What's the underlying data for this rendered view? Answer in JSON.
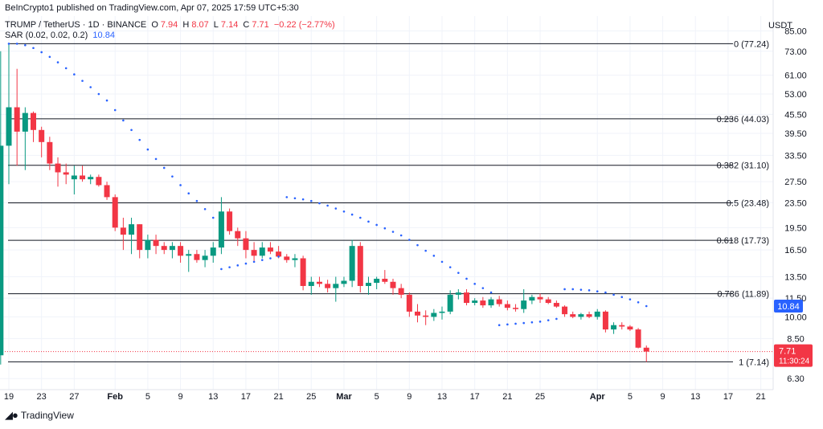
{
  "header": {
    "publisher": "BeInCrypto1 published on TradingView.com, Apr 07, 2025 17:59 UTC+5:30",
    "symbol": "TRUMP / TetherUS · 1D · BINANCE",
    "ohlc": {
      "o_label": "O",
      "o": "7.94",
      "h_label": "H",
      "h": "8.07",
      "l_label": "L",
      "l": "7.14",
      "c_label": "C",
      "c": "7.71",
      "change": "−0.22 (−2.77%)"
    },
    "sar_label": "SAR (0.02, 0.02, 0.2)",
    "sar_value": "10.84"
  },
  "currency": "USDT",
  "footer": {
    "brand": "TradingView",
    "logo_icon": "tradingview-logo-icon"
  },
  "colors": {
    "up": "#089981",
    "down": "#f23645",
    "sar": "#2962ff",
    "grid": "#f0f3fa",
    "level_line": "#131722",
    "price_line": "#f23645"
  },
  "chart_data": {
    "type": "candlestick",
    "symbol": "TRUMP/USDT",
    "scale": "log",
    "ylim": [
      5.8,
      95
    ],
    "y_ticks": [
      "85.00",
      "73.00",
      "61.00",
      "53.00",
      "45.50",
      "39.50",
      "33.50",
      "27.50",
      "23.50",
      "19.50",
      "16.50",
      "13.50",
      "11.50",
      "10.00",
      "8.50",
      "6.30"
    ],
    "x_ticks": [
      "19",
      "23",
      "27",
      "Feb",
      "5",
      "9",
      "13",
      "17",
      "21",
      "25",
      "Mar",
      "5",
      "9",
      "13",
      "17",
      "21",
      "25",
      "Apr",
      "5",
      "9",
      "13",
      "17",
      "21"
    ],
    "x_start_date": "2025-01-19",
    "fib_levels": [
      {
        "label": "0 (77.24)",
        "value": 77.24
      },
      {
        "label": "0.236 (44.03)",
        "value": 44.03
      },
      {
        "label": "0.382 (31.10)",
        "value": 31.1
      },
      {
        "label": "0.5 (23.48)",
        "value": 23.48
      },
      {
        "label": "0.618 (17.73)",
        "value": 17.73
      },
      {
        "label": "0.786 (11.89)",
        "value": 11.89
      },
      {
        "label": "1 (7.14)",
        "value": 7.14
      }
    ],
    "last_price": {
      "value": 7.71,
      "label": "7.71",
      "countdown": "11:30:24"
    },
    "sar_current": {
      "value": 10.84,
      "label": "10.84"
    },
    "candles": [
      {
        "d": "2025-01-18",
        "o": 7.5,
        "h": 73.0,
        "l": 7.0,
        "c": 36.0
      },
      {
        "d": "2025-01-19",
        "o": 36.0,
        "h": 77.24,
        "l": 27.0,
        "c": 48.0
      },
      {
        "d": "2025-01-20",
        "o": 48.0,
        "h": 64.0,
        "l": 31.0,
        "c": 40.0
      },
      {
        "d": "2025-01-21",
        "o": 40.0,
        "h": 48.0,
        "l": 30.0,
        "c": 46.0
      },
      {
        "d": "2025-01-22",
        "o": 46.0,
        "h": 46.5,
        "l": 37.0,
        "c": 40.5
      },
      {
        "d": "2025-01-23",
        "o": 40.5,
        "h": 41.5,
        "l": 33.0,
        "c": 37.0
      },
      {
        "d": "2025-01-24",
        "o": 37.0,
        "h": 38.5,
        "l": 30.0,
        "c": 31.5
      },
      {
        "d": "2025-01-25",
        "o": 31.5,
        "h": 33.0,
        "l": 26.5,
        "c": 29.5
      },
      {
        "d": "2025-01-26",
        "o": 29.5,
        "h": 31.5,
        "l": 27.0,
        "c": 29.0
      },
      {
        "d": "2025-01-27",
        "o": 28.0,
        "h": 31.0,
        "l": 25.0,
        "c": 28.8
      },
      {
        "d": "2025-01-28",
        "o": 28.8,
        "h": 31.0,
        "l": 27.5,
        "c": 28.0
      },
      {
        "d": "2025-01-29",
        "o": 28.0,
        "h": 29.0,
        "l": 27.0,
        "c": 28.5
      },
      {
        "d": "2025-01-30",
        "o": 28.5,
        "h": 29.0,
        "l": 26.5,
        "c": 26.8
      },
      {
        "d": "2025-01-31",
        "o": 26.8,
        "h": 27.5,
        "l": 24.0,
        "c": 24.5
      },
      {
        "d": "2025-02-01",
        "o": 24.5,
        "h": 25.0,
        "l": 19.0,
        "c": 19.5
      },
      {
        "d": "2025-02-02",
        "o": 19.5,
        "h": 21.0,
        "l": 16.5,
        "c": 18.5
      },
      {
        "d": "2025-02-03",
        "o": 18.5,
        "h": 21.0,
        "l": 16.0,
        "c": 20.0
      },
      {
        "d": "2025-02-04",
        "o": 20.0,
        "h": 20.0,
        "l": 15.5,
        "c": 16.5
      },
      {
        "d": "2025-02-05",
        "o": 16.5,
        "h": 18.5,
        "l": 15.5,
        "c": 17.8
      },
      {
        "d": "2025-02-06",
        "o": 17.8,
        "h": 18.5,
        "l": 16.0,
        "c": 17.0
      },
      {
        "d": "2025-02-07",
        "o": 17.0,
        "h": 17.5,
        "l": 16.0,
        "c": 16.5
      },
      {
        "d": "2025-02-08",
        "o": 16.5,
        "h": 17.5,
        "l": 15.5,
        "c": 17.0
      },
      {
        "d": "2025-02-09",
        "o": 17.0,
        "h": 17.5,
        "l": 15.0,
        "c": 15.8
      },
      {
        "d": "2025-02-10",
        "o": 15.8,
        "h": 16.5,
        "l": 14.0,
        "c": 16.0
      },
      {
        "d": "2025-02-11",
        "o": 16.0,
        "h": 16.5,
        "l": 15.0,
        "c": 15.3
      },
      {
        "d": "2025-02-12",
        "o": 15.3,
        "h": 16.5,
        "l": 14.5,
        "c": 15.8
      },
      {
        "d": "2025-02-13",
        "o": 15.8,
        "h": 17.5,
        "l": 15.0,
        "c": 16.8
      },
      {
        "d": "2025-02-14",
        "o": 16.8,
        "h": 24.5,
        "l": 16.0,
        "c": 22.0
      },
      {
        "d": "2025-02-15",
        "o": 22.0,
        "h": 22.5,
        "l": 18.5,
        "c": 19.0
      },
      {
        "d": "2025-02-16",
        "o": 19.0,
        "h": 19.5,
        "l": 17.0,
        "c": 18.0
      },
      {
        "d": "2025-02-17",
        "o": 18.0,
        "h": 19.0,
        "l": 15.5,
        "c": 16.5
      },
      {
        "d": "2025-02-18",
        "o": 16.5,
        "h": 17.5,
        "l": 15.0,
        "c": 15.8
      },
      {
        "d": "2025-02-19",
        "o": 15.8,
        "h": 17.5,
        "l": 15.5,
        "c": 16.8
      },
      {
        "d": "2025-02-20",
        "o": 16.8,
        "h": 17.5,
        "l": 16.0,
        "c": 16.3
      },
      {
        "d": "2025-02-21",
        "o": 16.3,
        "h": 17.0,
        "l": 15.5,
        "c": 15.7
      },
      {
        "d": "2025-02-22",
        "o": 15.7,
        "h": 16.0,
        "l": 15.0,
        "c": 15.3
      },
      {
        "d": "2025-02-23",
        "o": 15.3,
        "h": 16.0,
        "l": 14.5,
        "c": 15.5
      },
      {
        "d": "2025-02-24",
        "o": 15.5,
        "h": 15.8,
        "l": 12.2,
        "c": 12.6
      },
      {
        "d": "2025-02-25",
        "o": 12.6,
        "h": 13.5,
        "l": 11.8,
        "c": 13.0
      },
      {
        "d": "2025-02-26",
        "o": 13.0,
        "h": 13.5,
        "l": 12.5,
        "c": 12.8
      },
      {
        "d": "2025-02-27",
        "o": 12.8,
        "h": 13.2,
        "l": 12.0,
        "c": 12.4
      },
      {
        "d": "2025-02-28",
        "o": 12.4,
        "h": 13.5,
        "l": 11.2,
        "c": 12.8
      },
      {
        "d": "2025-03-01",
        "o": 12.8,
        "h": 13.5,
        "l": 12.5,
        "c": 13.1
      },
      {
        "d": "2025-03-02",
        "o": 13.1,
        "h": 17.8,
        "l": 12.5,
        "c": 17.0
      },
      {
        "d": "2025-03-03",
        "o": 17.0,
        "h": 17.5,
        "l": 12.0,
        "c": 12.6
      },
      {
        "d": "2025-03-04",
        "o": 12.6,
        "h": 13.5,
        "l": 11.8,
        "c": 12.9
      },
      {
        "d": "2025-03-05",
        "o": 12.9,
        "h": 13.5,
        "l": 12.3,
        "c": 13.3
      },
      {
        "d": "2025-03-06",
        "o": 13.3,
        "h": 14.2,
        "l": 12.8,
        "c": 13.0
      },
      {
        "d": "2025-03-07",
        "o": 13.0,
        "h": 13.3,
        "l": 11.8,
        "c": 12.4
      },
      {
        "d": "2025-03-08",
        "o": 12.4,
        "h": 12.8,
        "l": 11.5,
        "c": 11.8
      },
      {
        "d": "2025-03-09",
        "o": 11.8,
        "h": 12.0,
        "l": 10.0,
        "c": 10.4
      },
      {
        "d": "2025-03-10",
        "o": 10.4,
        "h": 11.0,
        "l": 9.6,
        "c": 10.1
      },
      {
        "d": "2025-03-11",
        "o": 10.1,
        "h": 10.5,
        "l": 9.4,
        "c": 10.0
      },
      {
        "d": "2025-03-12",
        "o": 10.0,
        "h": 10.6,
        "l": 9.7,
        "c": 10.3
      },
      {
        "d": "2025-03-13",
        "o": 10.3,
        "h": 10.8,
        "l": 9.8,
        "c": 10.4
      },
      {
        "d": "2025-03-14",
        "o": 10.4,
        "h": 12.2,
        "l": 10.2,
        "c": 11.8
      },
      {
        "d": "2025-03-15",
        "o": 11.8,
        "h": 12.3,
        "l": 11.4,
        "c": 12.0
      },
      {
        "d": "2025-03-16",
        "o": 12.0,
        "h": 12.3,
        "l": 10.9,
        "c": 11.1
      },
      {
        "d": "2025-03-17",
        "o": 11.1,
        "h": 11.5,
        "l": 10.9,
        "c": 11.3
      },
      {
        "d": "2025-03-18",
        "o": 11.3,
        "h": 11.6,
        "l": 10.7,
        "c": 10.9
      },
      {
        "d": "2025-03-19",
        "o": 10.9,
        "h": 11.6,
        "l": 10.7,
        "c": 11.4
      },
      {
        "d": "2025-03-20",
        "o": 11.4,
        "h": 11.7,
        "l": 10.8,
        "c": 11.0
      },
      {
        "d": "2025-03-21",
        "o": 11.0,
        "h": 11.3,
        "l": 10.5,
        "c": 10.7
      },
      {
        "d": "2025-03-22",
        "o": 10.7,
        "h": 11.0,
        "l": 10.4,
        "c": 10.6
      },
      {
        "d": "2025-03-23",
        "o": 10.6,
        "h": 12.3,
        "l": 10.3,
        "c": 11.3
      },
      {
        "d": "2025-03-24",
        "o": 11.3,
        "h": 11.8,
        "l": 11.0,
        "c": 11.6
      },
      {
        "d": "2025-03-25",
        "o": 11.6,
        "h": 11.9,
        "l": 11.1,
        "c": 11.4
      },
      {
        "d": "2025-03-26",
        "o": 11.4,
        "h": 11.6,
        "l": 11.0,
        "c": 11.1
      },
      {
        "d": "2025-03-27",
        "o": 11.1,
        "h": 11.3,
        "l": 10.7,
        "c": 10.8
      },
      {
        "d": "2025-03-28",
        "o": 10.8,
        "h": 10.9,
        "l": 10.0,
        "c": 10.2
      },
      {
        "d": "2025-03-29",
        "o": 10.2,
        "h": 10.4,
        "l": 9.9,
        "c": 10.0
      },
      {
        "d": "2025-03-30",
        "o": 10.0,
        "h": 10.3,
        "l": 9.8,
        "c": 10.2
      },
      {
        "d": "2025-03-31",
        "o": 10.2,
        "h": 10.4,
        "l": 9.9,
        "c": 10.0
      },
      {
        "d": "2025-04-01",
        "o": 10.0,
        "h": 10.6,
        "l": 9.8,
        "c": 10.4
      },
      {
        "d": "2025-04-02",
        "o": 10.4,
        "h": 10.5,
        "l": 8.9,
        "c": 9.1
      },
      {
        "d": "2025-04-03",
        "o": 9.1,
        "h": 9.6,
        "l": 8.8,
        "c": 9.4
      },
      {
        "d": "2025-04-04",
        "o": 9.4,
        "h": 9.6,
        "l": 9.1,
        "c": 9.3
      },
      {
        "d": "2025-04-05",
        "o": 9.3,
        "h": 9.4,
        "l": 9.0,
        "c": 9.1
      },
      {
        "d": "2025-04-06",
        "o": 9.1,
        "h": 9.2,
        "l": 7.9,
        "c": 7.94
      },
      {
        "d": "2025-04-07",
        "o": 7.94,
        "h": 8.07,
        "l": 7.14,
        "c": 7.71
      }
    ],
    "sar": [
      {
        "d": "2025-01-19",
        "v": 77.24
      },
      {
        "d": "2025-01-20",
        "v": 77.24
      },
      {
        "d": "2025-01-21",
        "v": 76.4
      },
      {
        "d": "2025-01-22",
        "v": 74.8
      },
      {
        "d": "2025-01-23",
        "v": 72.5
      },
      {
        "d": "2025-01-24",
        "v": 70.0
      },
      {
        "d": "2025-01-25",
        "v": 67.2
      },
      {
        "d": "2025-01-26",
        "v": 64.3
      },
      {
        "d": "2025-01-27",
        "v": 61.4
      },
      {
        "d": "2025-01-28",
        "v": 58.5
      },
      {
        "d": "2025-01-29",
        "v": 55.8
      },
      {
        "d": "2025-01-30",
        "v": 53.0
      },
      {
        "d": "2025-01-31",
        "v": 50.5
      },
      {
        "d": "2025-02-01",
        "v": 47.0
      },
      {
        "d": "2025-02-02",
        "v": 43.5
      },
      {
        "d": "2025-02-03",
        "v": 40.5
      },
      {
        "d": "2025-02-04",
        "v": 37.6
      },
      {
        "d": "2025-02-05",
        "v": 35.0
      },
      {
        "d": "2025-02-06",
        "v": 32.6
      },
      {
        "d": "2025-02-07",
        "v": 30.5
      },
      {
        "d": "2025-02-08",
        "v": 28.6
      },
      {
        "d": "2025-02-09",
        "v": 26.8
      },
      {
        "d": "2025-02-10",
        "v": 25.2
      },
      {
        "d": "2025-02-11",
        "v": 23.8
      },
      {
        "d": "2025-02-12",
        "v": 22.4
      },
      {
        "d": "2025-02-13",
        "v": 21.0
      },
      {
        "d": "2025-02-14",
        "v": 14.3
      },
      {
        "d": "2025-02-15",
        "v": 14.5
      },
      {
        "d": "2025-02-16",
        "v": 14.7
      },
      {
        "d": "2025-02-17",
        "v": 14.9
      },
      {
        "d": "2025-02-18",
        "v": 15.1
      },
      {
        "d": "2025-02-19",
        "v": 15.3
      },
      {
        "d": "2025-02-20",
        "v": 15.5
      },
      {
        "d": "2025-02-21",
        "v": 15.7
      },
      {
        "d": "2025-02-22",
        "v": 24.5
      },
      {
        "d": "2025-02-23",
        "v": 24.3
      },
      {
        "d": "2025-02-24",
        "v": 24.1
      },
      {
        "d": "2025-02-25",
        "v": 23.8
      },
      {
        "d": "2025-02-26",
        "v": 23.4
      },
      {
        "d": "2025-02-27",
        "v": 23.0
      },
      {
        "d": "2025-02-28",
        "v": 22.5
      },
      {
        "d": "2025-03-01",
        "v": 22.0
      },
      {
        "d": "2025-03-02",
        "v": 21.5
      },
      {
        "d": "2025-03-03",
        "v": 21.0
      },
      {
        "d": "2025-03-04",
        "v": 20.4
      },
      {
        "d": "2025-03-05",
        "v": 19.9
      },
      {
        "d": "2025-03-06",
        "v": 19.4
      },
      {
        "d": "2025-03-07",
        "v": 18.9
      },
      {
        "d": "2025-03-08",
        "v": 18.4
      },
      {
        "d": "2025-03-09",
        "v": 17.8
      },
      {
        "d": "2025-03-10",
        "v": 17.1
      },
      {
        "d": "2025-03-11",
        "v": 16.4
      },
      {
        "d": "2025-03-12",
        "v": 15.8
      },
      {
        "d": "2025-03-13",
        "v": 15.1
      },
      {
        "d": "2025-03-14",
        "v": 14.5
      },
      {
        "d": "2025-03-15",
        "v": 13.9
      },
      {
        "d": "2025-03-16",
        "v": 13.3
      },
      {
        "d": "2025-03-17",
        "v": 12.8
      },
      {
        "d": "2025-03-18",
        "v": 12.4
      },
      {
        "d": "2025-03-19",
        "v": 12.0
      },
      {
        "d": "2025-03-20",
        "v": 9.4
      },
      {
        "d": "2025-03-21",
        "v": 9.45
      },
      {
        "d": "2025-03-22",
        "v": 9.5
      },
      {
        "d": "2025-03-23",
        "v": 9.55
      },
      {
        "d": "2025-03-24",
        "v": 9.6
      },
      {
        "d": "2025-03-25",
        "v": 9.65
      },
      {
        "d": "2025-03-26",
        "v": 9.75
      },
      {
        "d": "2025-03-27",
        "v": 9.85
      },
      {
        "d": "2025-03-28",
        "v": 12.3
      },
      {
        "d": "2025-03-29",
        "v": 12.3
      },
      {
        "d": "2025-03-30",
        "v": 12.25
      },
      {
        "d": "2025-03-31",
        "v": 12.2
      },
      {
        "d": "2025-04-01",
        "v": 12.1
      },
      {
        "d": "2025-04-02",
        "v": 12.0
      },
      {
        "d": "2025-04-03",
        "v": 11.8
      },
      {
        "d": "2025-04-04",
        "v": 11.6
      },
      {
        "d": "2025-04-05",
        "v": 11.4
      },
      {
        "d": "2025-04-06",
        "v": 11.15
      },
      {
        "d": "2025-04-07",
        "v": 10.84
      }
    ]
  }
}
